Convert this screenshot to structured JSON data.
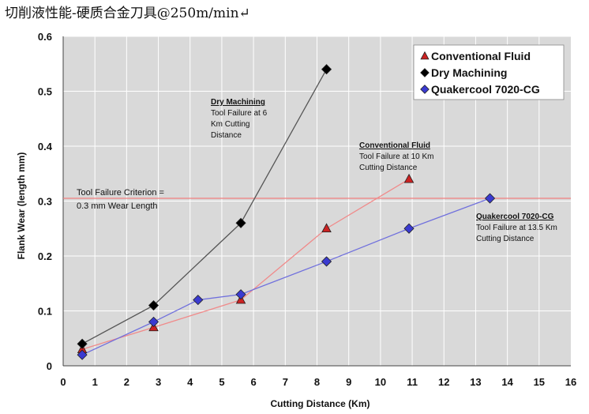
{
  "page_title": "切削液性能-硬质合金刀具@250m/min↵",
  "chart_data": {
    "type": "line",
    "xlabel": "Cutting Distance (Km)",
    "ylabel": "Flank Wear (length mm)",
    "xlim": [
      0,
      16
    ],
    "ylim": [
      0,
      0.6
    ],
    "x_ticks": [
      "0",
      "1",
      "2",
      "3",
      "4",
      "5",
      "6",
      "7",
      "8",
      "9",
      "10",
      "11",
      "12",
      "13",
      "14",
      "15",
      "16"
    ],
    "y_ticks": [
      "0",
      "0.1",
      "0.2",
      "0.3",
      "0.4",
      "0.5",
      "0.6"
    ],
    "grid": true,
    "legend_position": "top-right",
    "series": [
      {
        "name": "Conventional Fluid",
        "marker": "triangle",
        "color": "#cc2222",
        "line_color": "#f08a8a",
        "x": [
          0.6,
          2.85,
          5.6,
          8.3,
          10.9
        ],
        "y": [
          0.03,
          0.07,
          0.12,
          0.25,
          0.34
        ]
      },
      {
        "name": "Dry Machining",
        "marker": "diamond",
        "color": "#000000",
        "line_color": "#555555",
        "x": [
          0.6,
          2.85,
          5.6,
          8.3
        ],
        "y": [
          0.04,
          0.11,
          0.26,
          0.54
        ]
      },
      {
        "name": "Quakercool 7020-CG",
        "marker": "diamond",
        "color": "#3a3ad0",
        "line_color": "#7070dd",
        "x": [
          0.6,
          2.85,
          4.25,
          5.6,
          8.3,
          10.9,
          13.45
        ],
        "y": [
          0.02,
          0.08,
          0.12,
          0.13,
          0.19,
          0.25,
          0.305
        ]
      }
    ],
    "criterion": {
      "y": 0.305,
      "color": "#f08080",
      "label_lines": [
        "Tool Failure Criterion =",
        "0.3 mm Wear Length"
      ]
    },
    "annotations": [
      {
        "title": "Dry Machining",
        "lines": [
          "Tool Failure at 6",
          "Km Cutting",
          "Distance"
        ]
      },
      {
        "title": "Conventional Fluid",
        "lines": [
          "Tool Failure at 10 Km",
          "Cutting Distance"
        ]
      },
      {
        "title": "Quakercool 7020-CG",
        "lines": [
          "Tool Failure at 13.5 Km",
          "Cutting Distance"
        ]
      }
    ]
  }
}
